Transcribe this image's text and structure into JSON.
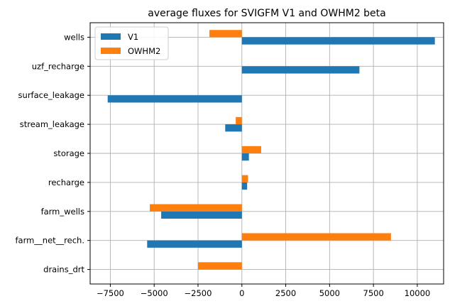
{
  "chart_data": {
    "type": "bar",
    "orientation": "horizontal",
    "title": "average fluxes for SVIGFM V1 and OWHM2 beta",
    "xlabel": "",
    "ylabel": "",
    "categories": [
      "drains_drt",
      "farm__net__rech.",
      "farm_wells",
      "recharge",
      "storage",
      "stream_leakage",
      "surface_leakage",
      "uzf_recharge",
      "wells"
    ],
    "series": [
      {
        "name": "V1",
        "color": "#1f77b4",
        "values": [
          0,
          -5400,
          -4600,
          300,
          400,
          -950,
          -7650,
          6700,
          11000
        ]
      },
      {
        "name": "OWHM2",
        "color": "#ff7f0e",
        "values": [
          -2500,
          8500,
          -5250,
          350,
          1100,
          -350,
          0,
          0,
          -1850
        ]
      }
    ],
    "xlim": [
      -8650,
      11500
    ],
    "xticks": [
      -7500,
      -5000,
      -2500,
      0,
      2500,
      5000,
      7500,
      10000
    ],
    "xtick_labels": [
      "−7500",
      "−5000",
      "−2500",
      "0",
      "2500",
      "5000",
      "7500",
      "10000"
    ],
    "grid": true,
    "legend_placement": "top-left"
  }
}
